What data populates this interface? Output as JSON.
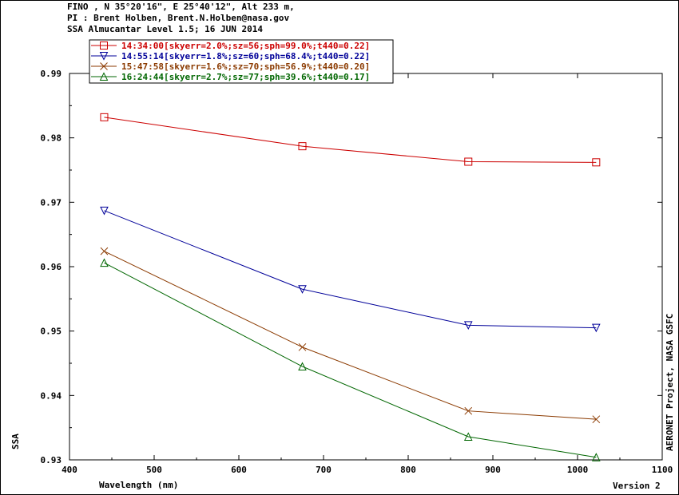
{
  "header": {
    "line1": "FINO , N 35°20'16\", E 25°40'12\", Alt 233 m,",
    "line2": "PI : Brent Holben, Brent.N.Holben@nasa.gov",
    "line3": "SSA Almucantar Level 1.5; 16 JUN 2014"
  },
  "side_label": "AERONET Project, NASA GSFC",
  "version_label": "Version 2",
  "colors": {
    "axis": "#000000",
    "legend_box": "#000000"
  },
  "chart_data": {
    "type": "line",
    "xlabel": "Wavelength (nm)",
    "ylabel": "SSA",
    "xlim": [
      400,
      1100
    ],
    "ylim": [
      0.93,
      0.99
    ],
    "xticks": [
      400,
      500,
      600,
      700,
      800,
      900,
      1000,
      1100
    ],
    "yticks": [
      0.93,
      0.94,
      0.95,
      0.96,
      0.97,
      0.98,
      0.99
    ],
    "ytick_labels": [
      "0.93",
      "0.94",
      "0.95",
      "0.96",
      "0.97",
      "0.98",
      "0.99"
    ],
    "legend_position": "top-left",
    "x": [
      441,
      675,
      871,
      1022
    ],
    "series": [
      {
        "name": "14:34:00[skyerr=2.0%;sz=56;sph=99.0%;t440=0.22]",
        "color": "#cc0000",
        "marker": "square",
        "values": [
          0.9832,
          0.9787,
          0.9763,
          0.9762
        ]
      },
      {
        "name": "14:55:14[skyerr=1.8%;sz=60;sph=68.4%;t440=0.22]",
        "color": "#000099",
        "marker": "triangle-down",
        "values": [
          0.9687,
          0.9565,
          0.9509,
          0.9505
        ]
      },
      {
        "name": "15:47:58[skyerr=1.6%;sz=70;sph=56.9%;t440=0.20]",
        "color": "#8b3a00",
        "marker": "x",
        "values": [
          0.9624,
          0.9475,
          0.9376,
          0.9363
        ]
      },
      {
        "name": "16:24:44[skyerr=2.7%;sz=77;sph=39.6%;t440=0.17]",
        "color": "#006600",
        "marker": "triangle-up",
        "values": [
          0.9606,
          0.9445,
          0.9336,
          0.9304
        ]
      }
    ]
  }
}
